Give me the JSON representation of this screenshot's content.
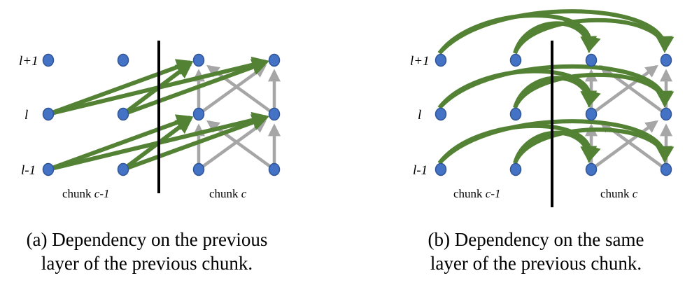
{
  "colors": {
    "node_fill": "#4472C4",
    "node_stroke": "#2F5597",
    "dependency_edge": "#548235",
    "intra_chunk_edge": "#A6A6A6",
    "divider": "#000000"
  },
  "panel_a": {
    "layer_labels": {
      "top": "l+1",
      "mid": "l",
      "bottom": "l-1"
    },
    "chunk_prev": {
      "prefix": "chunk ",
      "var": "c-1"
    },
    "chunk_cur": {
      "prefix": "chunk ",
      "var": "c"
    },
    "caption_line1": "(a) Dependency on the previous",
    "caption_line2": "layer of the previous chunk."
  },
  "panel_b": {
    "layer_labels": {
      "top": "l+1",
      "mid": "l",
      "bottom": "l-1"
    },
    "chunk_prev": {
      "prefix": "chunk ",
      "var": "c-1"
    },
    "chunk_cur": {
      "prefix": "chunk ",
      "var": "c"
    },
    "caption_line1": "(b) Dependency on the same",
    "caption_line2": "layer of the previous chunk."
  }
}
